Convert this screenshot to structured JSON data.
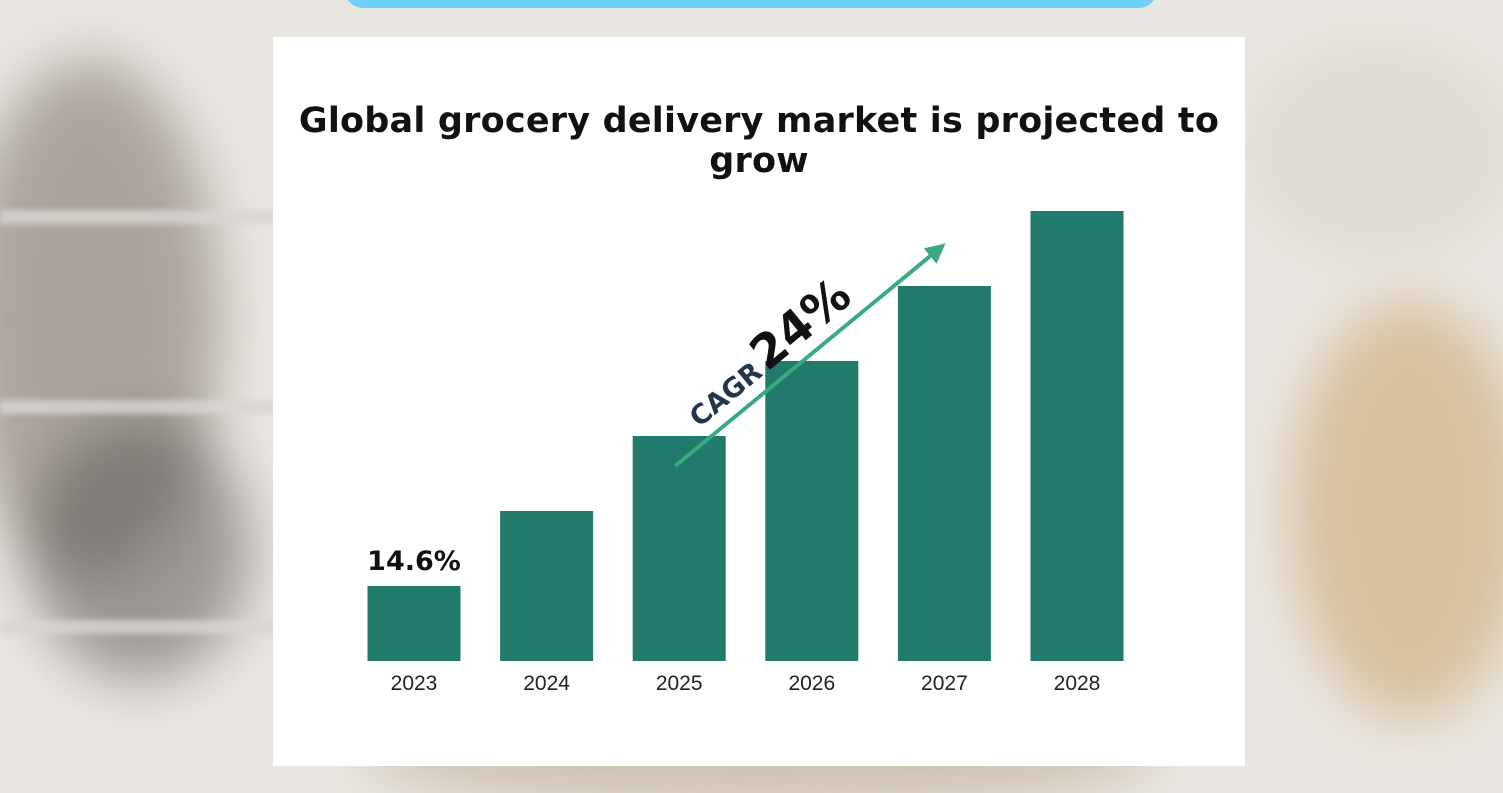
{
  "chart_data": {
    "type": "bar",
    "title": "Global grocery delivery market is projected to grow",
    "categories": [
      "2023",
      "2024",
      "2025",
      "2026",
      "2027",
      "2028"
    ],
    "values": [
      1.0,
      2.0,
      3.0,
      4.0,
      5.0,
      6.0
    ],
    "ylim": [
      0,
      6.2
    ],
    "xlabel": "",
    "ylabel": "",
    "first_bar_label": "14.6%",
    "annotation": {
      "prefix": "CAGR",
      "value": "24%"
    },
    "bar_color": "#217a6c",
    "arrow_color": "#3aaa80"
  }
}
